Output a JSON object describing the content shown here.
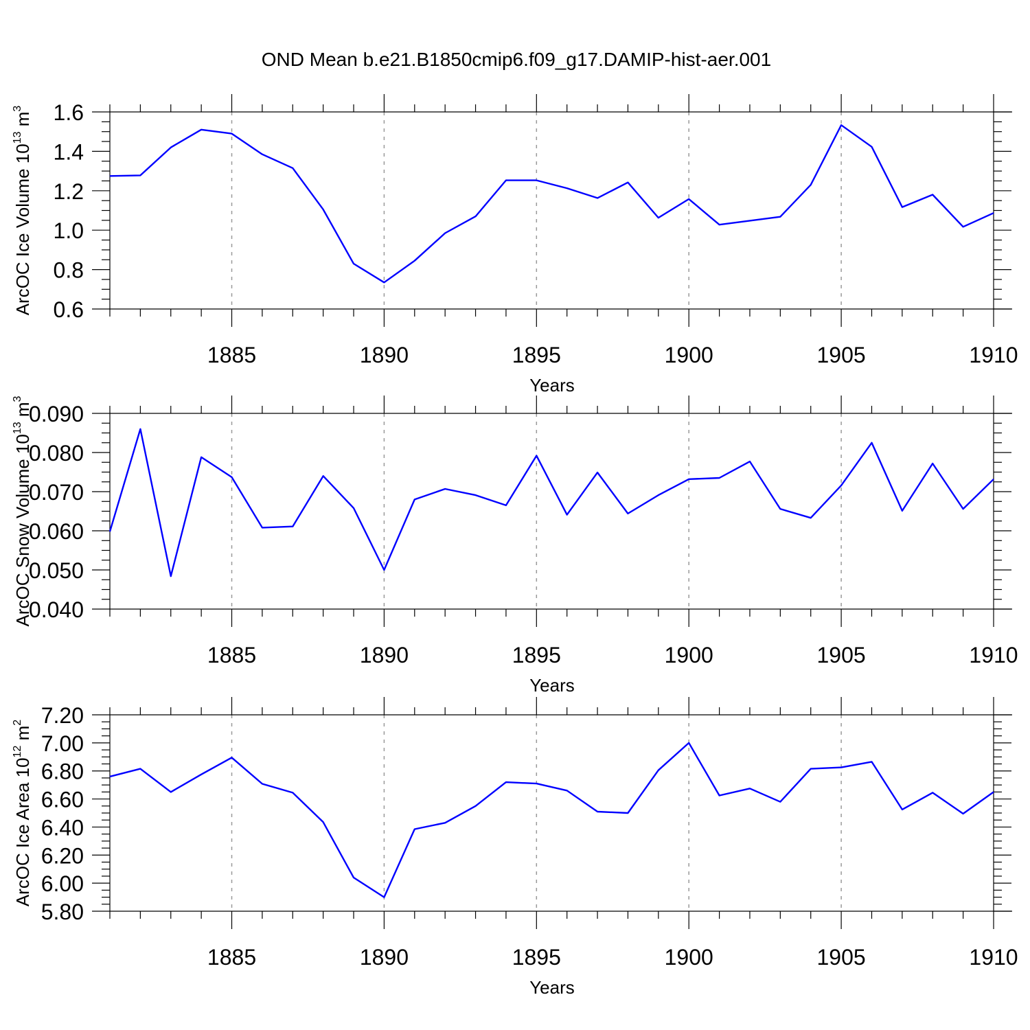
{
  "title": "OND Mean b.e21.B1850cmip6.f09_g17.DAMIP-hist-aer.001",
  "colors": {
    "series": "#0000ff",
    "axis": "#000000",
    "grid": "#999999"
  },
  "chart_data": [
    {
      "type": "line",
      "name": "ice-volume",
      "ylabel": {
        "main": "ArcOC Ice Volume 10",
        "exp": "13",
        "unit": " m",
        "unit_exp": "3"
      },
      "xlabel": "Years",
      "xlim": [
        1881,
        1910
      ],
      "ylim": [
        0.6,
        1.6
      ],
      "y_major_step": 0.2,
      "y_minor_step": 0.05,
      "y_decimals": 1,
      "x_major_ticks": [
        1885,
        1890,
        1895,
        1900,
        1905,
        1910
      ],
      "x_grid": [
        1885,
        1890,
        1895,
        1900,
        1905
      ],
      "series": [
        {
          "name": "Ice Volume",
          "x": [
            1881,
            1882,
            1883,
            1884,
            1885,
            1886,
            1887,
            1888,
            1889,
            1890,
            1891,
            1892,
            1893,
            1894,
            1895,
            1896,
            1897,
            1898,
            1899,
            1900,
            1901,
            1902,
            1903,
            1904,
            1905,
            1906,
            1907,
            1908,
            1909,
            1910
          ],
          "values": [
            1.275,
            1.278,
            1.42,
            1.51,
            1.49,
            1.385,
            1.315,
            1.105,
            0.83,
            0.735,
            0.845,
            0.985,
            1.07,
            1.253,
            1.253,
            1.213,
            1.163,
            1.242,
            1.063,
            1.158,
            1.028,
            1.048,
            1.068,
            1.23,
            1.533,
            1.423,
            1.117,
            1.18,
            1.017,
            1.087
          ]
        }
      ]
    },
    {
      "type": "line",
      "name": "snow-volume",
      "ylabel": {
        "main": "ArcOC Snow Volume 10",
        "exp": "13",
        "unit": " m",
        "unit_exp": "3"
      },
      "xlabel": "Years",
      "xlim": [
        1881,
        1910
      ],
      "ylim": [
        0.04,
        0.09
      ],
      "y_major_step": 0.01,
      "y_minor_step": 0.0025,
      "y_decimals": 3,
      "x_major_ticks": [
        1885,
        1890,
        1895,
        1900,
        1905,
        1910
      ],
      "x_grid": [
        1885,
        1890,
        1895,
        1900,
        1905
      ],
      "series": [
        {
          "name": "Snow Volume",
          "x": [
            1881,
            1882,
            1883,
            1884,
            1885,
            1886,
            1887,
            1888,
            1889,
            1890,
            1891,
            1892,
            1893,
            1894,
            1895,
            1896,
            1897,
            1898,
            1899,
            1900,
            1901,
            1902,
            1903,
            1904,
            1905,
            1906,
            1907,
            1908,
            1909,
            1910
          ],
          "values": [
            0.0598,
            0.086,
            0.0484,
            0.0788,
            0.0737,
            0.0608,
            0.0611,
            0.074,
            0.0658,
            0.05,
            0.068,
            0.0707,
            0.0691,
            0.0665,
            0.0792,
            0.0641,
            0.0749,
            0.0644,
            0.0691,
            0.0732,
            0.0735,
            0.0777,
            0.0656,
            0.0633,
            0.0716,
            0.0825,
            0.0651,
            0.0772,
            0.0656,
            0.0732
          ]
        }
      ]
    },
    {
      "type": "line",
      "name": "ice-area",
      "ylabel": {
        "main": "ArcOC Ice Area 10",
        "exp": "12",
        "unit": " m",
        "unit_exp": "2"
      },
      "xlabel": "Years",
      "xlim": [
        1881,
        1910
      ],
      "ylim": [
        5.8,
        7.2
      ],
      "y_major_step": 0.2,
      "y_minor_step": 0.05,
      "y_decimals": 2,
      "x_major_ticks": [
        1885,
        1890,
        1895,
        1900,
        1905,
        1910
      ],
      "x_grid": [
        1885,
        1890,
        1895,
        1900,
        1905
      ],
      "series": [
        {
          "name": "Ice Area",
          "x": [
            1881,
            1882,
            1883,
            1884,
            1885,
            1886,
            1887,
            1888,
            1889,
            1890,
            1891,
            1892,
            1893,
            1894,
            1895,
            1896,
            1897,
            1898,
            1899,
            1900,
            1901,
            1902,
            1903,
            1904,
            1905,
            1906,
            1907,
            1908,
            1909,
            1910
          ],
          "values": [
            6.76,
            6.815,
            6.65,
            6.775,
            6.895,
            6.708,
            6.645,
            6.435,
            6.04,
            5.9,
            6.385,
            6.43,
            6.55,
            6.72,
            6.71,
            6.66,
            6.51,
            6.5,
            6.805,
            7.0,
            6.625,
            6.675,
            6.58,
            6.815,
            6.825,
            6.865,
            6.525,
            6.645,
            6.495,
            6.65
          ]
        }
      ]
    }
  ]
}
